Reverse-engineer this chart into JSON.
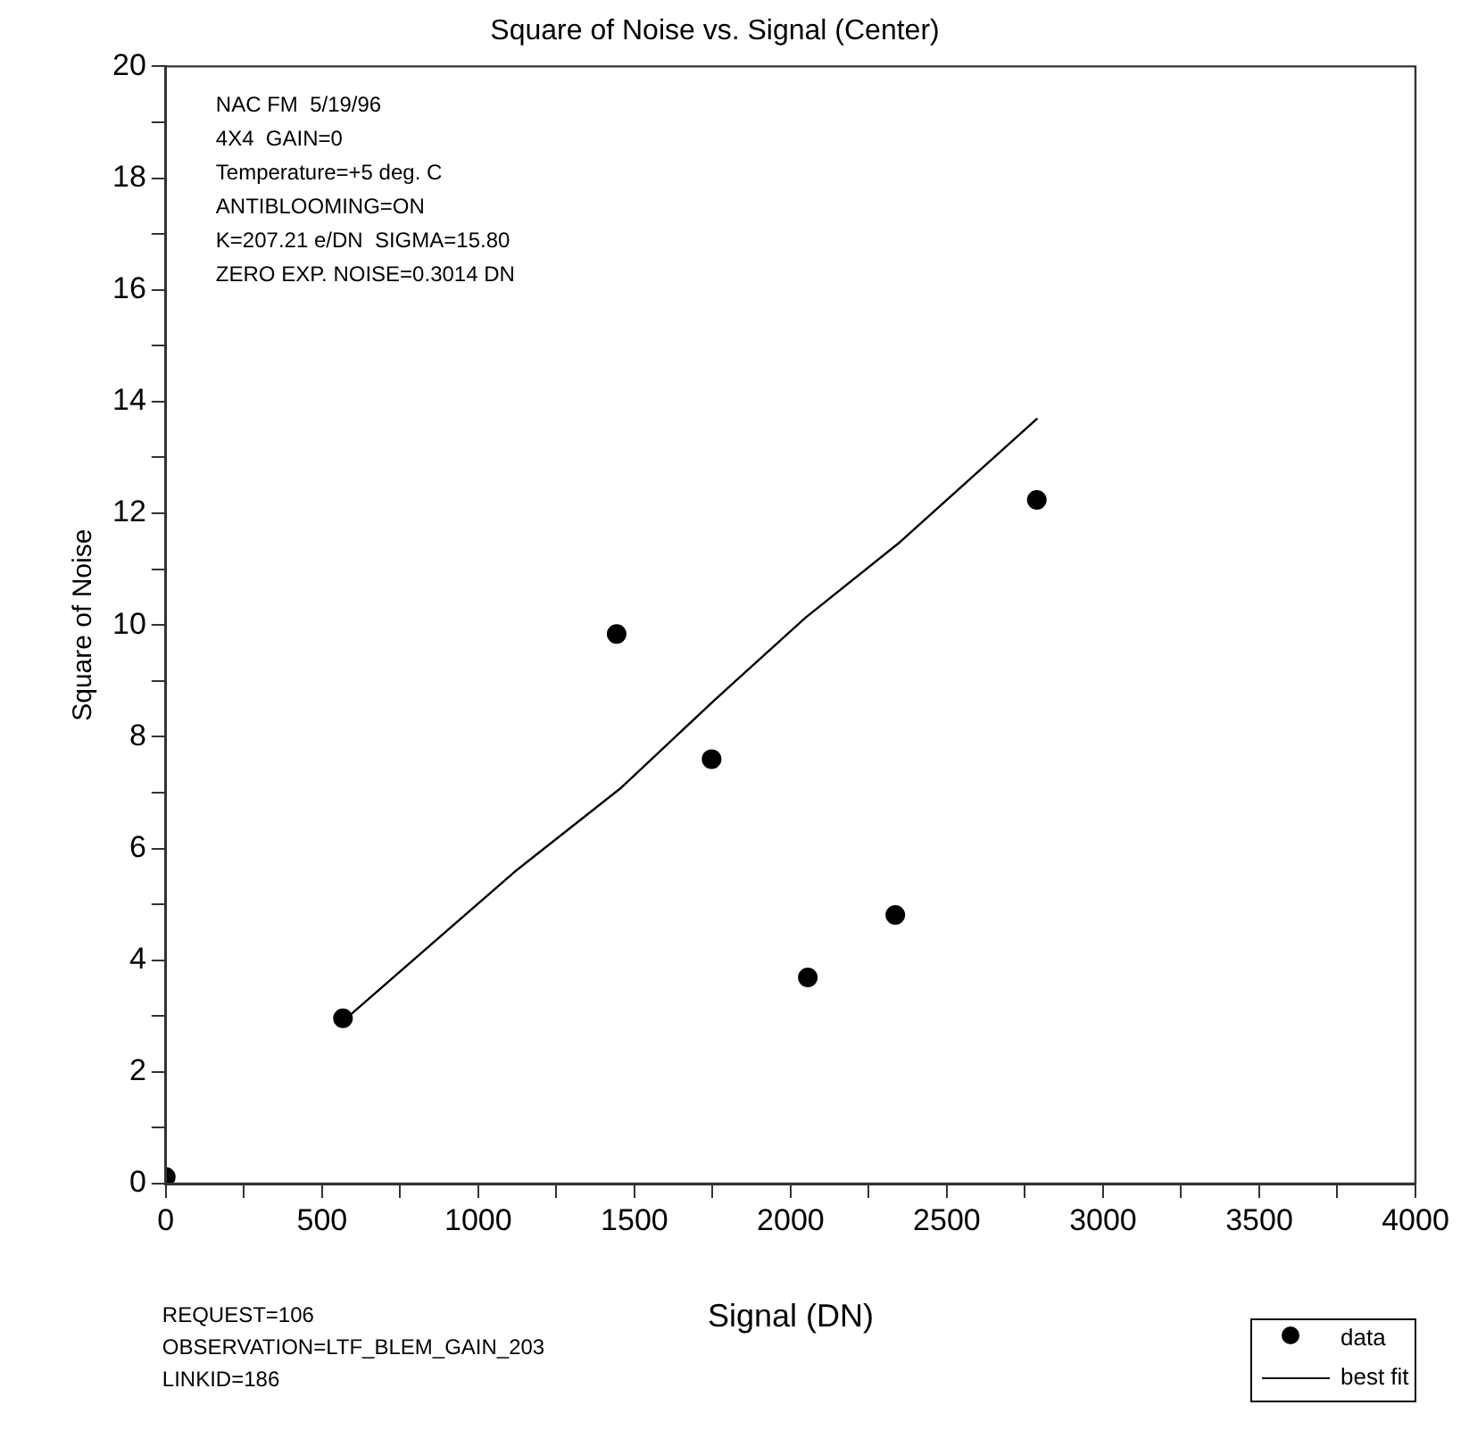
{
  "chart_data": {
    "type": "scatter",
    "title": "Square of Noise vs. Signal (Center)",
    "xlabel": "Signal (DN)",
    "ylabel": "Square of Noise",
    "series": [
      {
        "name": "data",
        "type": "scatter",
        "color": "#000000",
        "marker": "circle",
        "x": [
          0,
          567,
          1443,
          1747,
          2055,
          2335,
          2788
        ],
        "values": [
          0.12,
          2.96,
          9.84,
          7.6,
          3.69,
          4.81,
          12.24
        ]
      },
      {
        "name": "best fit",
        "type": "line",
        "color": "#000000",
        "marker": "none",
        "line_style": "solid",
        "x": [
          580,
          1116,
          1454,
          1757,
          2047,
          2351,
          2790
        ],
        "values": [
          2.97,
          5.58,
          7.07,
          8.66,
          10.13,
          11.49,
          13.7
        ]
      }
    ],
    "xlim": [
      0,
      4000
    ],
    "xticks": [
      0,
      {
        "value": 250,
        "label": null
      },
      500,
      {
        "value": 750,
        "label": null
      },
      1000,
      {
        "value": 1250,
        "label": null
      },
      1500,
      {
        "value": 1750,
        "label": null
      },
      2000,
      {
        "value": 2250,
        "label": null
      },
      2500,
      {
        "value": 2750,
        "label": null
      },
      3000,
      {
        "value": 3250,
        "label": null
      },
      3500,
      {
        "value": 3750,
        "label": null
      },
      4000
    ],
    "ylim": [
      0,
      20
    ],
    "yticks": [
      0,
      {
        "value": 1,
        "label": null
      },
      2,
      {
        "value": 3,
        "label": null
      },
      4,
      {
        "value": 5,
        "label": null
      },
      6,
      {
        "value": 7,
        "label": null
      },
      8,
      {
        "value": 9,
        "label": null
      },
      10,
      {
        "value": 11,
        "label": null
      },
      12,
      {
        "value": 13,
        "label": null
      },
      14,
      {
        "value": 15,
        "label": null
      },
      16,
      {
        "value": 17,
        "label": null
      },
      18,
      {
        "value": 19,
        "label": null
      },
      20
    ],
    "grid": false,
    "legend": "bottom right",
    "annotations": [
      "NAC FM  5/19/96\n4X4  GAIN=0\nTemperature=+5 deg. C\nANTIBLOOMING=ON\nK=207.21 e/DN  SIGMA=15.80\nZERO EXP. NOISE=0.3014 DN",
      "REQUEST=106\nOBSERVATION=LTF_BLEM_GAIN_203\nLINKID=186"
    ]
  }
}
